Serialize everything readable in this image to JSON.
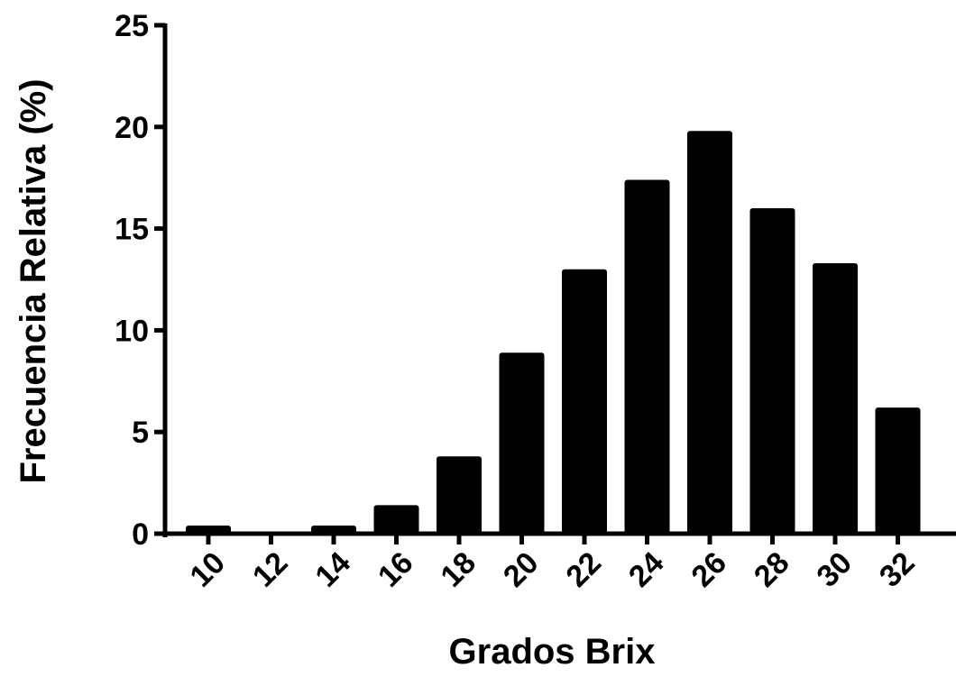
{
  "chart_data": {
    "type": "bar",
    "categories": [
      "10",
      "12",
      "14",
      "16",
      "18",
      "20",
      "22",
      "24",
      "26",
      "28",
      "30",
      "32"
    ],
    "values": [
      0.4,
      0,
      0.4,
      1.4,
      3.8,
      8.9,
      13.0,
      17.4,
      19.8,
      16.0,
      13.3,
      6.2
    ],
    "title": "",
    "xlabel": "Grados Brix",
    "ylabel": "Frecuencia Relativa (%)",
    "ylim": [
      0,
      25
    ],
    "yticks": [
      "0",
      "5",
      "10",
      "15",
      "20",
      "25"
    ],
    "grid": false,
    "legend": "none",
    "bar_color": "#000000",
    "axis_color": "#000000"
  }
}
